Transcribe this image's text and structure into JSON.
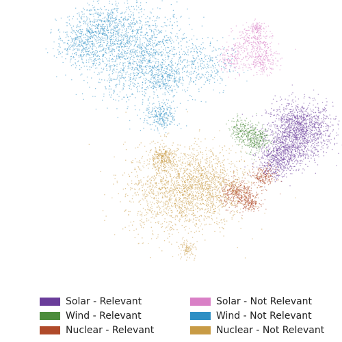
{
  "chart_data": {
    "type": "scatter",
    "title": "",
    "xlabel": "",
    "ylabel": "",
    "axes_visible": false,
    "grid": false,
    "legend_position": "bottom",
    "legend_columns": 2,
    "xlim": [
      0,
      100
    ],
    "ylim": [
      0,
      100
    ],
    "series": [
      {
        "name": "Solar - Relevant",
        "color": "#6a3d9a",
        "clusters": [
          {
            "x": 89,
            "y": 55,
            "spread": 5,
            "count": 1400
          },
          {
            "x": 84,
            "y": 47,
            "spread": 3.5,
            "count": 500
          },
          {
            "x": 81,
            "y": 42,
            "spread": 2.5,
            "count": 200
          }
        ]
      },
      {
        "name": "Wind - Relevant",
        "color": "#4c8c3c",
        "clusters": [
          {
            "x": 75,
            "y": 52,
            "spread": 2.5,
            "count": 350
          },
          {
            "x": 71,
            "y": 56,
            "spread": 1.8,
            "count": 120
          }
        ]
      },
      {
        "name": "Nuclear - Relevant",
        "color": "#b04a2a",
        "clusters": [
          {
            "x": 70,
            "y": 32,
            "spread": 2.5,
            "count": 350
          },
          {
            "x": 74,
            "y": 29,
            "spread": 1.5,
            "count": 150
          },
          {
            "x": 78,
            "y": 38,
            "spread": 2,
            "count": 200
          }
        ]
      },
      {
        "name": "Solar - Not Relevant",
        "color": "#d980c6",
        "clusters": [
          {
            "x": 75,
            "y": 87,
            "spread": 3,
            "count": 250
          },
          {
            "x": 78,
            "y": 80,
            "spread": 2.2,
            "count": 200
          },
          {
            "x": 69,
            "y": 81,
            "spread": 2.5,
            "count": 160
          },
          {
            "x": 76,
            "y": 92,
            "spread": 1,
            "count": 80
          }
        ]
      },
      {
        "name": "Wind - Not Relevant",
        "color": "#2e8fc4",
        "clusters": [
          {
            "x": 40,
            "y": 82,
            "spread": 8,
            "count": 1400
          },
          {
            "x": 30,
            "y": 93,
            "spread": 5,
            "count": 500
          },
          {
            "x": 23,
            "y": 86,
            "spread": 4,
            "count": 400
          },
          {
            "x": 48,
            "y": 74,
            "spread": 2.5,
            "count": 200
          },
          {
            "x": 47,
            "y": 60,
            "spread": 2.5,
            "count": 250
          },
          {
            "x": 59,
            "y": 78,
            "spread": 5,
            "count": 300
          }
        ]
      },
      {
        "name": "Nuclear - Not Relevant",
        "color": "#c89b45",
        "clusters": [
          {
            "x": 52,
            "y": 33,
            "spread": 8,
            "count": 1500
          },
          {
            "x": 62,
            "y": 36,
            "spread": 6,
            "count": 700
          },
          {
            "x": 47,
            "y": 45,
            "spread": 2,
            "count": 250
          },
          {
            "x": 55,
            "y": 12,
            "spread": 1.2,
            "count": 80
          }
        ]
      }
    ]
  }
}
